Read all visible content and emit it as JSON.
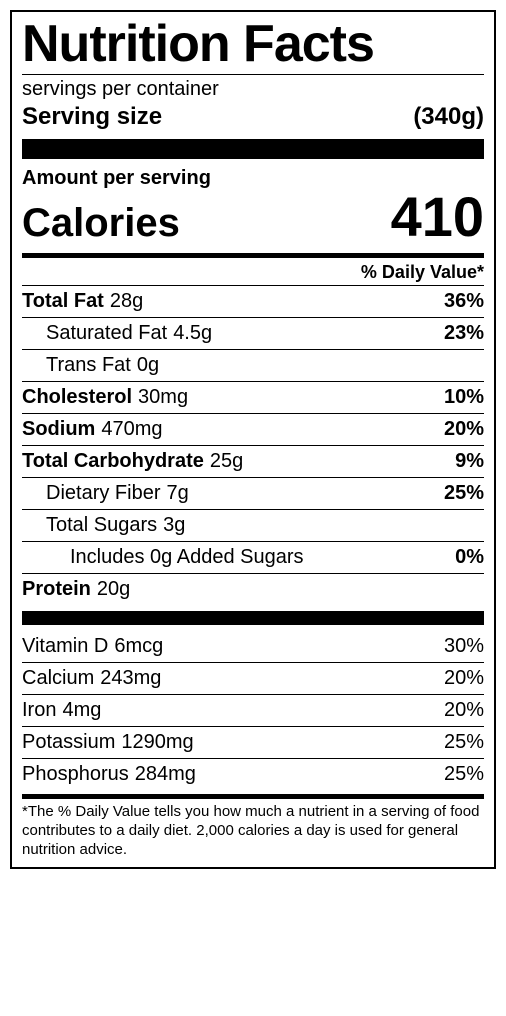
{
  "title": "Nutrition Facts",
  "servings_per_container": "servings per container",
  "serving_size_label": "Serving size",
  "serving_size_value": "(340g)",
  "amount_per_serving_label": "Amount per serving",
  "calories_label": "Calories",
  "calories_value": "410",
  "dv_header": "% Daily Value*",
  "nutrients_main": [
    {
      "name": "Total Fat",
      "amount": "28g",
      "dv": "36%",
      "bold": true,
      "indent": 0
    },
    {
      "name": "Saturated Fat",
      "amount": "4.5g",
      "dv": "23%",
      "bold": false,
      "indent": 1
    },
    {
      "name": "Trans Fat",
      "amount": "0g",
      "dv": "",
      "bold": false,
      "indent": 1
    },
    {
      "name": "Cholesterol",
      "amount": "30mg",
      "dv": "10%",
      "bold": true,
      "indent": 0
    },
    {
      "name": "Sodium",
      "amount": "470mg",
      "dv": "20%",
      "bold": true,
      "indent": 0
    },
    {
      "name": "Total Carbohydrate",
      "amount": "25g",
      "dv": "9%",
      "bold": true,
      "indent": 0
    },
    {
      "name": "Dietary Fiber",
      "amount": "7g",
      "dv": "25%",
      "bold": false,
      "indent": 1
    },
    {
      "name": "Total Sugars",
      "amount": "3g",
      "dv": "",
      "bold": false,
      "indent": 1
    },
    {
      "name": "Includes 0g Added Sugars",
      "amount": "",
      "dv": "0%",
      "bold": false,
      "indent": 2
    },
    {
      "name": "Protein",
      "amount": "20g",
      "dv": "",
      "bold": true,
      "indent": 0
    }
  ],
  "nutrients_secondary": [
    {
      "name": "Vitamin D",
      "amount": "6mcg",
      "dv": "30%"
    },
    {
      "name": "Calcium",
      "amount": "243mg",
      "dv": "20%"
    },
    {
      "name": "Iron",
      "amount": "4mg",
      "dv": "20%"
    },
    {
      "name": "Potassium",
      "amount": "1290mg",
      "dv": "25%"
    },
    {
      "name": "Phosphorus",
      "amount": "284mg",
      "dv": "25%"
    }
  ],
  "footnote": "*The % Daily Value tells you how much a nutrient in a serving of food contributes to a daily diet. 2,000 calories a day is used for general nutrition advice.",
  "colors": {
    "text": "#000000",
    "background": "#ffffff",
    "border": "#000000"
  },
  "font": {
    "family": "Arial, Helvetica, sans-serif",
    "title_size": 52,
    "nutrient_size": 20,
    "calories_value_size": 56
  }
}
